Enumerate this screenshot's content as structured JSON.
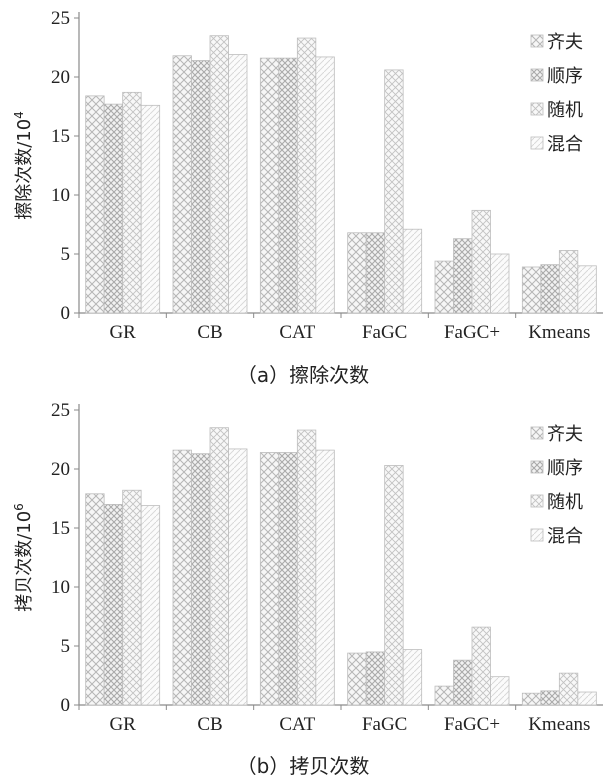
{
  "chart_data": [
    {
      "type": "bar",
      "caption": "（a）擦除次数",
      "ylabel_main": "擦除次数/10",
      "ylabel_exp": "4",
      "categories": [
        "GR",
        "CB",
        "CAT",
        "FaGC",
        "FaGC+",
        "Kmeans"
      ],
      "ylim": [
        0,
        25
      ],
      "yticks": [
        0,
        5,
        10,
        15,
        20,
        25
      ],
      "legend_position": "top-right",
      "grid": false,
      "series": [
        {
          "name": "齐夫",
          "values": [
            18.4,
            21.8,
            21.6,
            6.8,
            4.4,
            3.9
          ]
        },
        {
          "name": "顺序",
          "values": [
            17.7,
            21.4,
            21.6,
            6.8,
            6.3,
            4.1
          ]
        },
        {
          "name": "随机",
          "values": [
            18.7,
            23.5,
            23.3,
            20.6,
            8.7,
            5.3
          ]
        },
        {
          "name": "混合",
          "values": [
            17.6,
            21.9,
            21.7,
            7.1,
            5.0,
            4.0
          ]
        }
      ]
    },
    {
      "type": "bar",
      "caption": "（b）拷贝次数",
      "ylabel_main": "拷贝次数/10",
      "ylabel_exp": "6",
      "categories": [
        "GR",
        "CB",
        "CAT",
        "FaGC",
        "FaGC+",
        "Kmeans"
      ],
      "ylim": [
        0,
        25
      ],
      "yticks": [
        0,
        5,
        10,
        15,
        20,
        25
      ],
      "legend_position": "top-right",
      "grid": false,
      "series": [
        {
          "name": "齐夫",
          "values": [
            17.9,
            21.6,
            21.4,
            4.4,
            1.6,
            1.0
          ]
        },
        {
          "name": "顺序",
          "values": [
            17.0,
            21.3,
            21.4,
            4.5,
            3.8,
            1.2
          ]
        },
        {
          "name": "随机",
          "values": [
            18.2,
            23.5,
            23.3,
            20.3,
            6.6,
            2.7
          ]
        },
        {
          "name": "混合",
          "values": [
            16.9,
            21.7,
            21.6,
            4.7,
            2.4,
            1.1
          ]
        }
      ]
    }
  ]
}
